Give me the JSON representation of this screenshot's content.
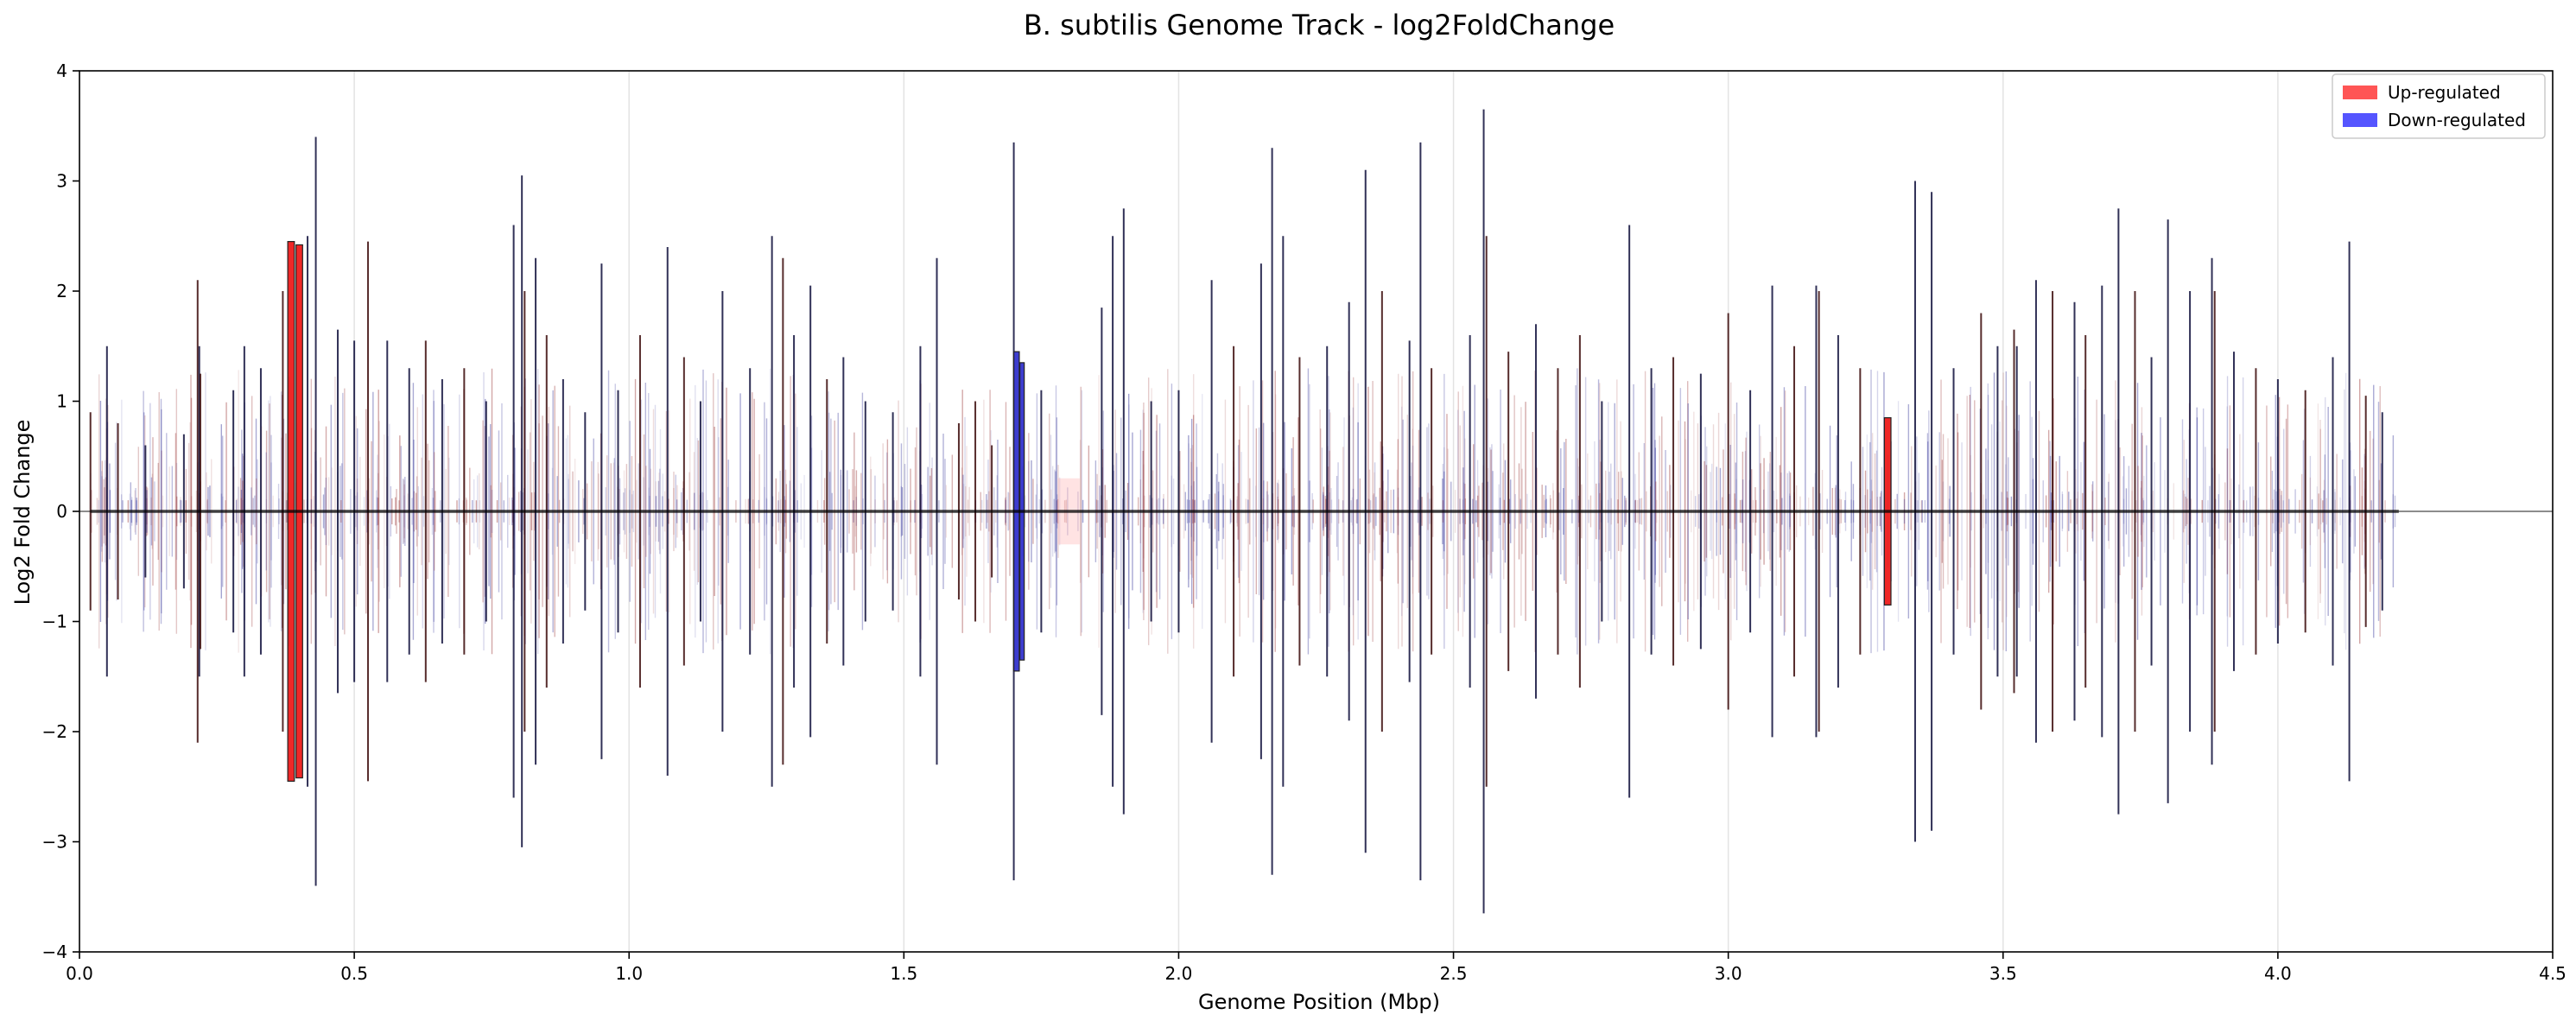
{
  "chart_data": {
    "type": "bar",
    "title": "B. subtilis Genome Track - log2FoldChange",
    "xlabel": "Genome Position (Mbp)",
    "ylabel": "Log2 Fold Change",
    "xlim": [
      0,
      4.5
    ],
    "ylim": [
      -4,
      4
    ],
    "xticks": [
      "0.0",
      "0.5",
      "1.0",
      "1.5",
      "2.0",
      "2.5",
      "3.0",
      "3.5",
      "4.0",
      "4.5"
    ],
    "yticks": [
      "−4",
      "−3",
      "−2",
      "−1",
      "0",
      "1",
      "2",
      "3",
      "4"
    ],
    "grid": "vertical",
    "legend_position": "top-right",
    "legend": [
      {
        "label": "Up-regulated",
        "color": "#ff5555"
      },
      {
        "label": "Down-regulated",
        "color": "#5555ff"
      }
    ],
    "colors": {
      "up": "#e00000",
      "down": "#1a1a8c",
      "zero_line": "#000000"
    },
    "note_symmetric": "each feature drawn symmetrically about 0 to +/- its magnitude",
    "features": [
      {
        "x": 0.02,
        "v": 0.9,
        "d": "up"
      },
      {
        "x": 0.05,
        "v": 1.5,
        "d": "down"
      },
      {
        "x": 0.07,
        "v": 0.8,
        "d": "up"
      },
      {
        "x": 0.12,
        "v": 0.6,
        "d": "down"
      },
      {
        "x": 0.19,
        "v": 0.7,
        "d": "down"
      },
      {
        "x": 0.215,
        "v": 2.1,
        "d": "up"
      },
      {
        "x": 0.218,
        "v": 1.5,
        "d": "down"
      },
      {
        "x": 0.22,
        "v": 1.25,
        "d": "up"
      },
      {
        "x": 0.28,
        "v": 1.1,
        "d": "down"
      },
      {
        "x": 0.3,
        "v": 1.5,
        "d": "down"
      },
      {
        "x": 0.33,
        "v": 1.3,
        "d": "down"
      },
      {
        "x": 0.37,
        "v": 2.0,
        "d": "up"
      },
      {
        "x": 0.385,
        "v": 2.45,
        "d": "up",
        "w": 0.012
      },
      {
        "x": 0.4,
        "v": 2.42,
        "d": "up",
        "w": 0.012
      },
      {
        "x": 0.415,
        "v": 2.5,
        "d": "down"
      },
      {
        "x": 0.43,
        "v": 3.4,
        "d": "down"
      },
      {
        "x": 0.47,
        "v": 1.65,
        "d": "down"
      },
      {
        "x": 0.5,
        "v": 1.55,
        "d": "down"
      },
      {
        "x": 0.525,
        "v": 2.45,
        "d": "up"
      },
      {
        "x": 0.56,
        "v": 1.55,
        "d": "down"
      },
      {
        "x": 0.6,
        "v": 1.3,
        "d": "down"
      },
      {
        "x": 0.63,
        "v": 1.55,
        "d": "up"
      },
      {
        "x": 0.66,
        "v": 1.2,
        "d": "down"
      },
      {
        "x": 0.7,
        "v": 1.3,
        "d": "up"
      },
      {
        "x": 0.74,
        "v": 1.0,
        "d": "down"
      },
      {
        "x": 0.79,
        "v": 2.6,
        "d": "down"
      },
      {
        "x": 0.805,
        "v": 3.05,
        "d": "down"
      },
      {
        "x": 0.81,
        "v": 2.0,
        "d": "up"
      },
      {
        "x": 0.83,
        "v": 2.3,
        "d": "down"
      },
      {
        "x": 0.85,
        "v": 1.6,
        "d": "up"
      },
      {
        "x": 0.88,
        "v": 1.2,
        "d": "down"
      },
      {
        "x": 0.92,
        "v": 0.9,
        "d": "down"
      },
      {
        "x": 0.95,
        "v": 2.25,
        "d": "down"
      },
      {
        "x": 0.98,
        "v": 1.1,
        "d": "down"
      },
      {
        "x": 1.02,
        "v": 1.6,
        "d": "up"
      },
      {
        "x": 1.07,
        "v": 2.4,
        "d": "down"
      },
      {
        "x": 1.1,
        "v": 1.4,
        "d": "up"
      },
      {
        "x": 1.13,
        "v": 1.0,
        "d": "down"
      },
      {
        "x": 1.17,
        "v": 2.0,
        "d": "down"
      },
      {
        "x": 1.22,
        "v": 1.3,
        "d": "down"
      },
      {
        "x": 1.26,
        "v": 2.5,
        "d": "down"
      },
      {
        "x": 1.28,
        "v": 2.3,
        "d": "up"
      },
      {
        "x": 1.3,
        "v": 1.6,
        "d": "down"
      },
      {
        "x": 1.33,
        "v": 2.05,
        "d": "down"
      },
      {
        "x": 1.36,
        "v": 1.2,
        "d": "up"
      },
      {
        "x": 1.39,
        "v": 1.4,
        "d": "down"
      },
      {
        "x": 1.43,
        "v": 1.0,
        "d": "down"
      },
      {
        "x": 1.48,
        "v": 0.9,
        "d": "down"
      },
      {
        "x": 1.53,
        "v": 1.5,
        "d": "down"
      },
      {
        "x": 1.56,
        "v": 2.3,
        "d": "down"
      },
      {
        "x": 1.6,
        "v": 0.8,
        "d": "up"
      },
      {
        "x": 1.63,
        "v": 1.0,
        "d": "up"
      },
      {
        "x": 1.66,
        "v": 0.6,
        "d": "up"
      },
      {
        "x": 1.7,
        "v": 3.35,
        "d": "down"
      },
      {
        "x": 1.705,
        "v": 1.45,
        "d": "down",
        "w": 0.01
      },
      {
        "x": 1.715,
        "v": 1.35,
        "d": "down",
        "w": 0.008
      },
      {
        "x": 1.75,
        "v": 1.1,
        "d": "down"
      },
      {
        "x": 1.8,
        "v": 0.3,
        "d": "up",
        "w": 0.04,
        "faint": true
      },
      {
        "x": 1.86,
        "v": 1.85,
        "d": "down"
      },
      {
        "x": 1.88,
        "v": 2.5,
        "d": "down"
      },
      {
        "x": 1.9,
        "v": 2.75,
        "d": "down"
      },
      {
        "x": 1.95,
        "v": 1.0,
        "d": "down"
      },
      {
        "x": 2.0,
        "v": 1.1,
        "d": "down"
      },
      {
        "x": 2.06,
        "v": 2.1,
        "d": "down"
      },
      {
        "x": 2.1,
        "v": 1.5,
        "d": "up"
      },
      {
        "x": 2.15,
        "v": 2.25,
        "d": "down"
      },
      {
        "x": 2.17,
        "v": 3.3,
        "d": "down"
      },
      {
        "x": 2.19,
        "v": 2.5,
        "d": "down"
      },
      {
        "x": 2.22,
        "v": 1.4,
        "d": "up"
      },
      {
        "x": 2.27,
        "v": 1.5,
        "d": "down"
      },
      {
        "x": 2.31,
        "v": 1.9,
        "d": "down"
      },
      {
        "x": 2.34,
        "v": 3.1,
        "d": "down"
      },
      {
        "x": 2.37,
        "v": 2.0,
        "d": "up"
      },
      {
        "x": 2.42,
        "v": 1.55,
        "d": "down"
      },
      {
        "x": 2.44,
        "v": 3.35,
        "d": "down"
      },
      {
        "x": 2.46,
        "v": 1.3,
        "d": "up"
      },
      {
        "x": 2.53,
        "v": 1.6,
        "d": "down"
      },
      {
        "x": 2.555,
        "v": 3.65,
        "d": "down"
      },
      {
        "x": 2.56,
        "v": 2.5,
        "d": "up"
      },
      {
        "x": 2.6,
        "v": 1.45,
        "d": "up"
      },
      {
        "x": 2.65,
        "v": 1.7,
        "d": "down"
      },
      {
        "x": 2.69,
        "v": 1.3,
        "d": "up"
      },
      {
        "x": 2.73,
        "v": 1.6,
        "d": "up"
      },
      {
        "x": 2.77,
        "v": 1.0,
        "d": "down"
      },
      {
        "x": 2.82,
        "v": 2.6,
        "d": "down"
      },
      {
        "x": 2.86,
        "v": 1.3,
        "d": "down"
      },
      {
        "x": 2.9,
        "v": 1.4,
        "d": "up"
      },
      {
        "x": 2.95,
        "v": 1.25,
        "d": "down"
      },
      {
        "x": 3.0,
        "v": 1.8,
        "d": "up"
      },
      {
        "x": 3.04,
        "v": 1.1,
        "d": "down"
      },
      {
        "x": 3.08,
        "v": 2.05,
        "d": "down"
      },
      {
        "x": 3.12,
        "v": 1.5,
        "d": "up"
      },
      {
        "x": 3.16,
        "v": 2.05,
        "d": "down"
      },
      {
        "x": 3.165,
        "v": 2.0,
        "d": "up"
      },
      {
        "x": 3.2,
        "v": 1.6,
        "d": "down"
      },
      {
        "x": 3.24,
        "v": 1.3,
        "d": "up"
      },
      {
        "x": 3.29,
        "v": 0.85,
        "d": "up",
        "w": 0.012
      },
      {
        "x": 3.34,
        "v": 3.0,
        "d": "down"
      },
      {
        "x": 3.37,
        "v": 2.9,
        "d": "down"
      },
      {
        "x": 3.41,
        "v": 1.3,
        "d": "down"
      },
      {
        "x": 3.46,
        "v": 1.8,
        "d": "up"
      },
      {
        "x": 3.49,
        "v": 1.5,
        "d": "down"
      },
      {
        "x": 3.52,
        "v": 1.65,
        "d": "up"
      },
      {
        "x": 3.525,
        "v": 1.5,
        "d": "down"
      },
      {
        "x": 3.56,
        "v": 2.1,
        "d": "down"
      },
      {
        "x": 3.59,
        "v": 2.0,
        "d": "up"
      },
      {
        "x": 3.63,
        "v": 1.9,
        "d": "down"
      },
      {
        "x": 3.65,
        "v": 1.6,
        "d": "up"
      },
      {
        "x": 3.68,
        "v": 2.05,
        "d": "down"
      },
      {
        "x": 3.71,
        "v": 2.75,
        "d": "down"
      },
      {
        "x": 3.74,
        "v": 2.0,
        "d": "up"
      },
      {
        "x": 3.77,
        "v": 1.4,
        "d": "down"
      },
      {
        "x": 3.8,
        "v": 2.65,
        "d": "down"
      },
      {
        "x": 3.84,
        "v": 2.0,
        "d": "down"
      },
      {
        "x": 3.88,
        "v": 2.3,
        "d": "down"
      },
      {
        "x": 3.885,
        "v": 2.0,
        "d": "up"
      },
      {
        "x": 3.92,
        "v": 1.45,
        "d": "down"
      },
      {
        "x": 3.96,
        "v": 1.3,
        "d": "up"
      },
      {
        "x": 4.0,
        "v": 1.2,
        "d": "down"
      },
      {
        "x": 4.05,
        "v": 1.1,
        "d": "up"
      },
      {
        "x": 4.1,
        "v": 1.4,
        "d": "down"
      },
      {
        "x": 4.13,
        "v": 2.45,
        "d": "down"
      },
      {
        "x": 4.16,
        "v": 1.05,
        "d": "up"
      },
      {
        "x": 4.19,
        "v": 0.9,
        "d": "down"
      }
    ]
  }
}
